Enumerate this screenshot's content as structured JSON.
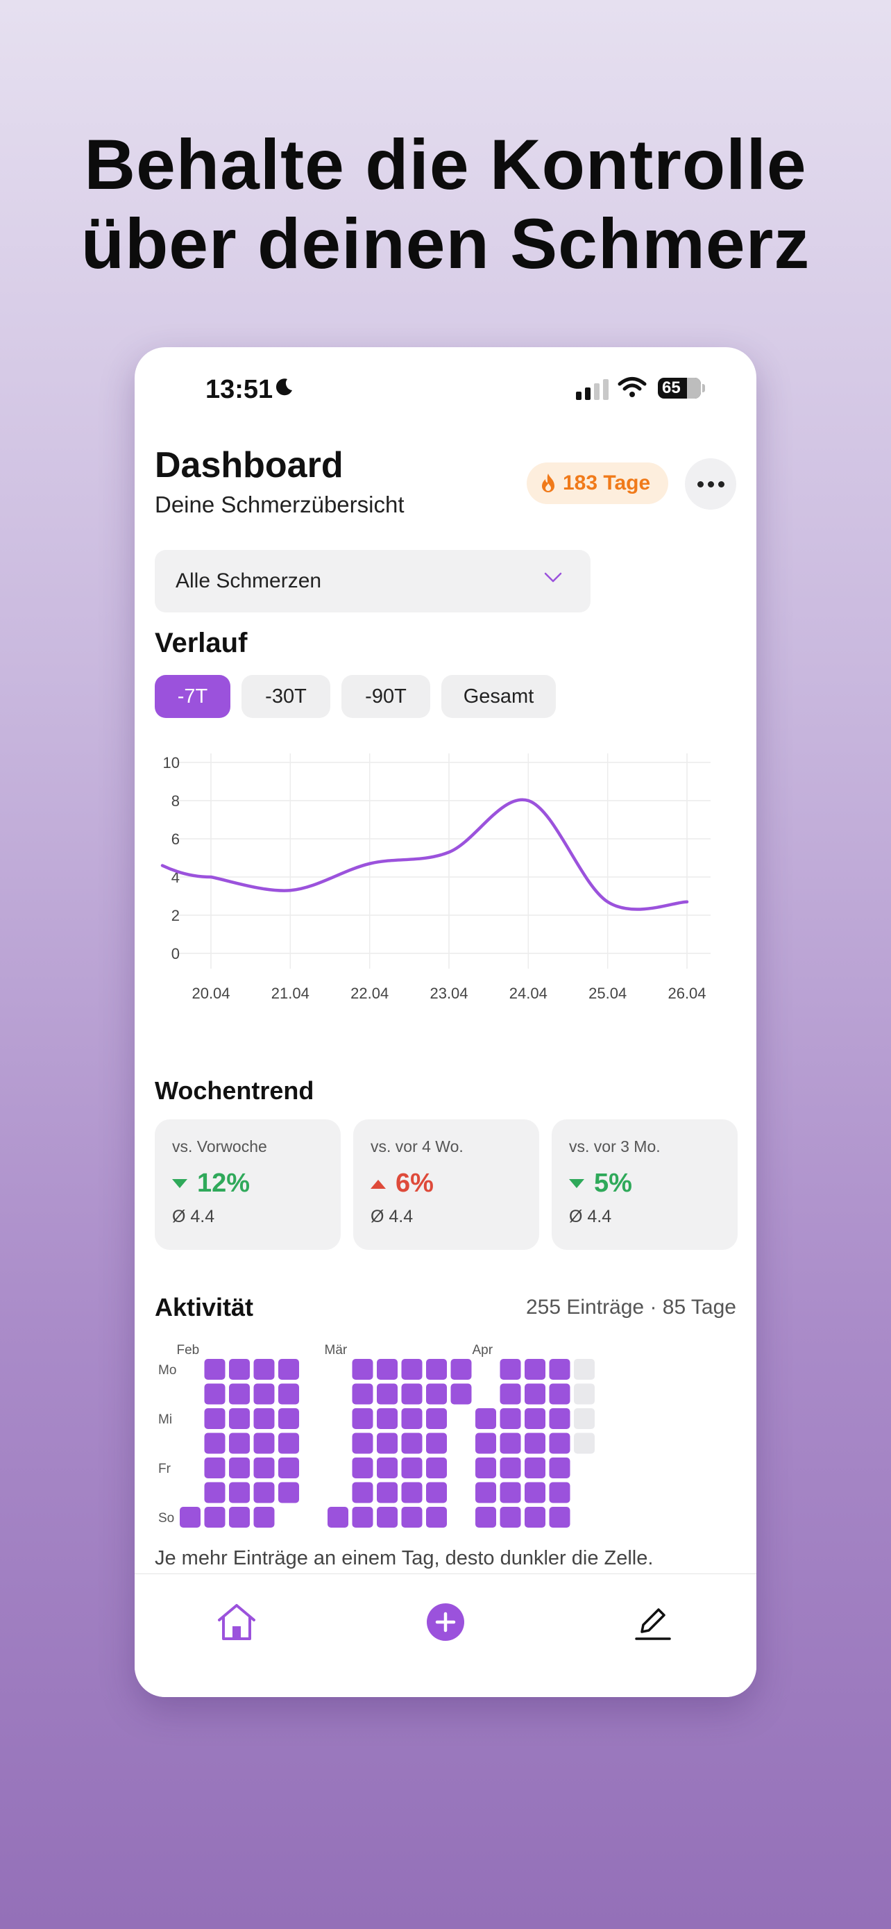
{
  "headline": {
    "line1": "Behalte die Kontrolle",
    "line2": "über deinen Schmerz"
  },
  "status_bar": {
    "time": "13:51",
    "battery": "65"
  },
  "header": {
    "title": "Dashboard",
    "subtitle": "Deine Schmerzübersicht",
    "streak": "183 Tage"
  },
  "filter": {
    "selected": "Alle Schmerzen"
  },
  "history": {
    "title": "Verlauf",
    "ranges": [
      "-7T",
      "-30T",
      "-90T",
      "Gesamt"
    ],
    "active_range": "-7T"
  },
  "chart_data": {
    "type": "line",
    "x": [
      "20.04",
      "21.04",
      "22.04",
      "23.04",
      "24.04",
      "25.04",
      "26.04"
    ],
    "series": [
      {
        "values": [
          4.0,
          3.3,
          4.7,
          5.3,
          8.0,
          2.7,
          2.7
        ]
      }
    ],
    "ylim": [
      0,
      10
    ],
    "yticks": [
      "0",
      "2",
      "4",
      "6",
      "8",
      "10"
    ],
    "grid": true,
    "color": "#9b52dc"
  },
  "trend": {
    "title": "Wochentrend",
    "cards": [
      {
        "label": "vs. Vorwoche",
        "value": "12%",
        "direction": "down",
        "avg": "Ø 4.4"
      },
      {
        "label": "vs. vor 4 Wo.",
        "value": "6%",
        "direction": "up",
        "avg": "Ø 4.4"
      },
      {
        "label": "vs. vor 3 Mo.",
        "value": "5%",
        "direction": "down",
        "avg": "Ø 4.4"
      }
    ]
  },
  "activity": {
    "title": "Aktivität",
    "meta": "255 Einträge · 85 Tage",
    "months": [
      "Feb",
      "Mär",
      "Apr"
    ],
    "weekdays": [
      "Mo",
      "Mi",
      "Fr",
      "So"
    ],
    "hint": "Je mehr Einträge an einem Tag, desto dunkler die Zelle.",
    "columns": [
      "0000001",
      "1111111",
      "1111111",
      "1111111",
      "1111110",
      "",
      "0000001",
      "1111111",
      "1111111",
      "1111111",
      "1111111",
      "1100000",
      "0011111",
      "1111111",
      "1111111",
      "1111111",
      "2222"
    ],
    "fill_color": "#9b52dc",
    "empty_color": "#e9e9ec"
  },
  "tabbar": {
    "items": [
      "home-icon",
      "add-icon",
      "edit-icon"
    ]
  }
}
